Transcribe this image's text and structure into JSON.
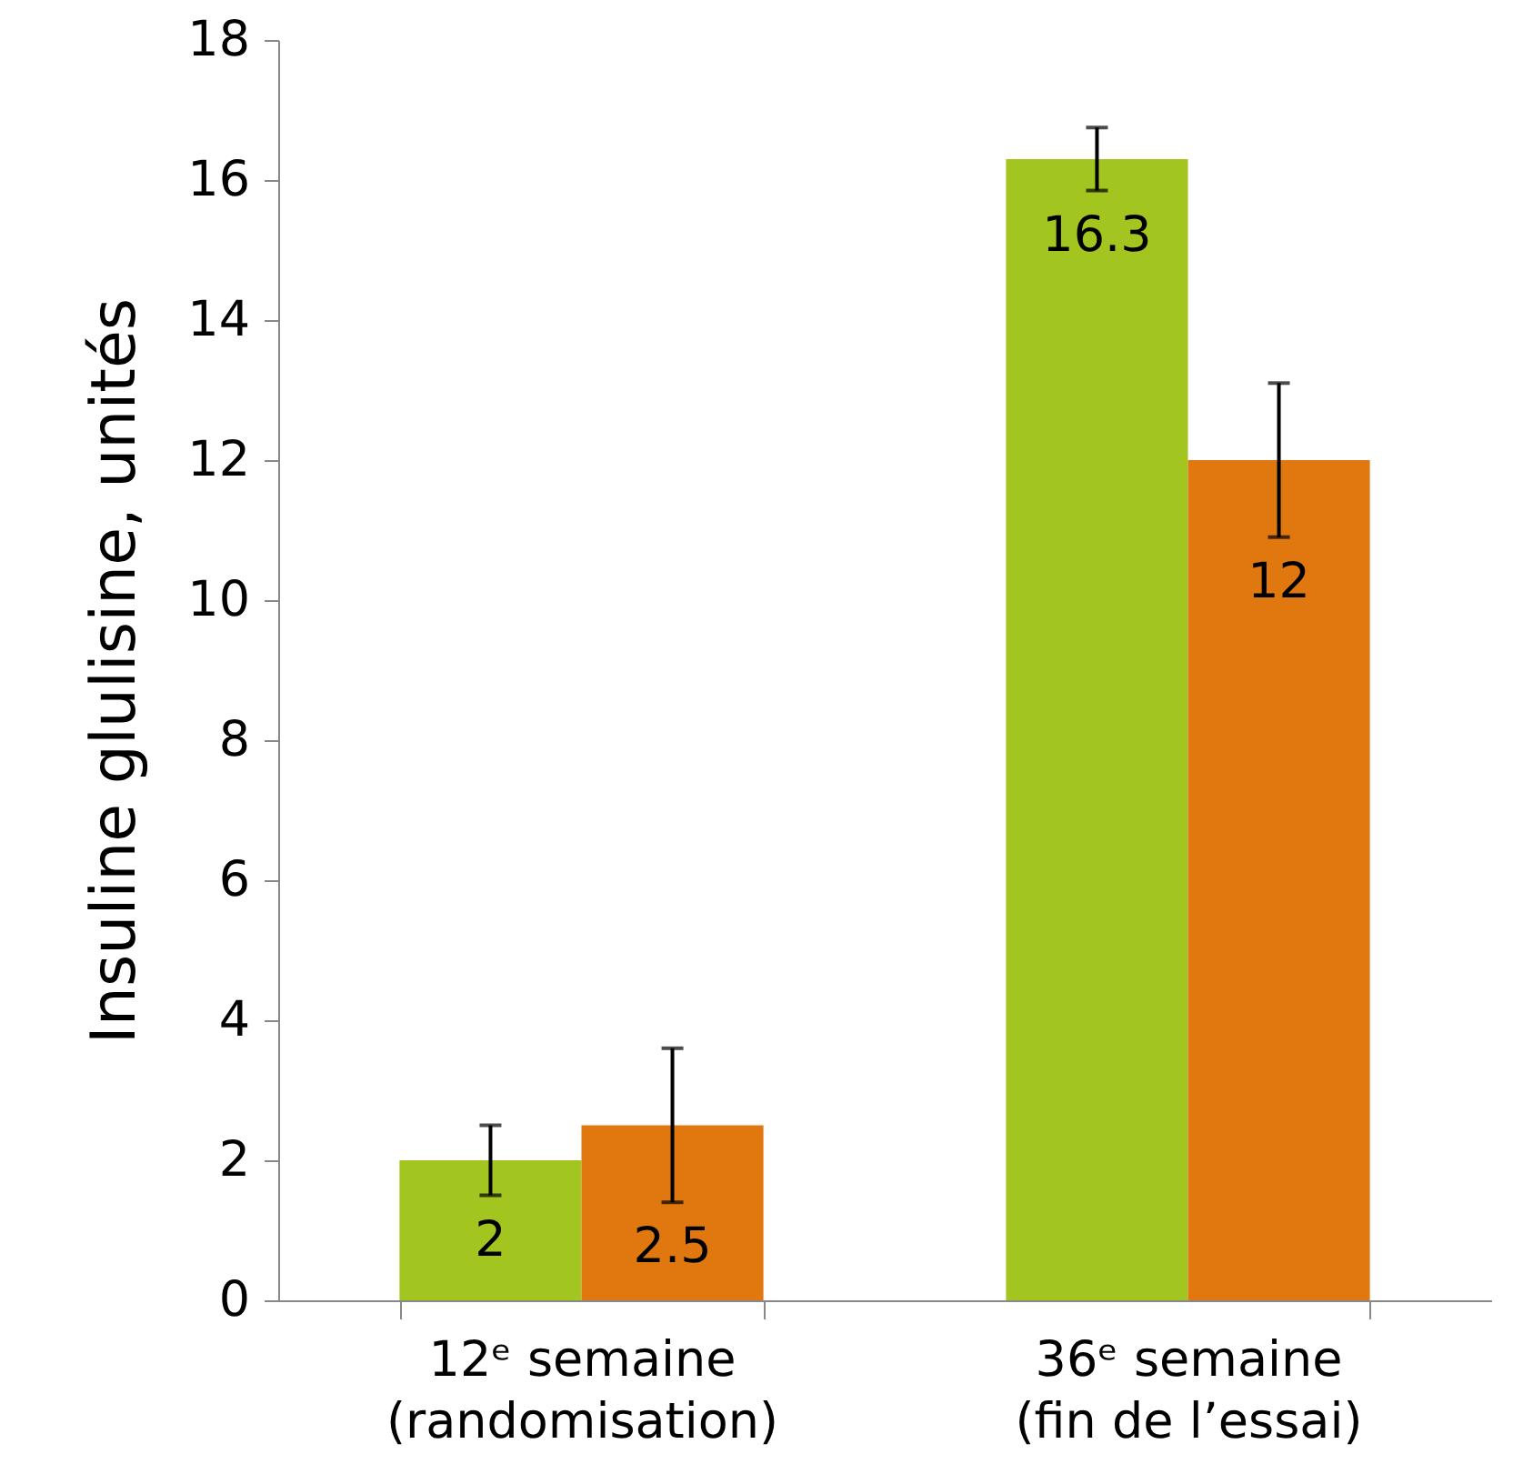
{
  "chart_data": {
    "type": "bar",
    "ylabel": "Insuline glulisine, unités",
    "categories": [
      "12ᵉ semaine\n(randomisation)",
      "36ᵉ semaine\n(fin de l’essai)"
    ],
    "series": [
      {
        "color": "#a3c520",
        "values": [
          2,
          16.3
        ],
        "errors": [
          0.5,
          0.45
        ]
      },
      {
        "color": "#e0780f",
        "values": [
          2.5,
          12
        ],
        "errors": [
          1.1,
          1.1
        ]
      }
    ],
    "ylim": [
      0,
      18
    ],
    "yticks": [
      0,
      2,
      4,
      6,
      8,
      10,
      12,
      14,
      16,
      18
    ],
    "data_labels": true,
    "grid": false,
    "legend": false
  }
}
